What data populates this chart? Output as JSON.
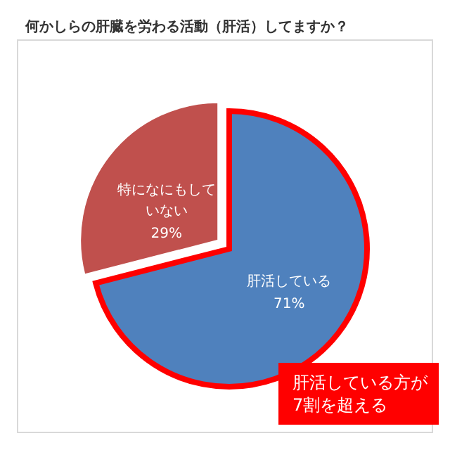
{
  "chart_data": {
    "type": "pie",
    "title": "何かしらの肝臓を労わる活動（肝活）してますか？",
    "categories": [
      "肝活している",
      "特になにもしていない"
    ],
    "values": [
      71,
      29
    ],
    "colors": [
      "#4f81bd",
      "#c0504d"
    ],
    "value_labels": [
      "71%",
      "29%"
    ],
    "annotations": [
      "肝活している方が7割を超える"
    ]
  }
}
